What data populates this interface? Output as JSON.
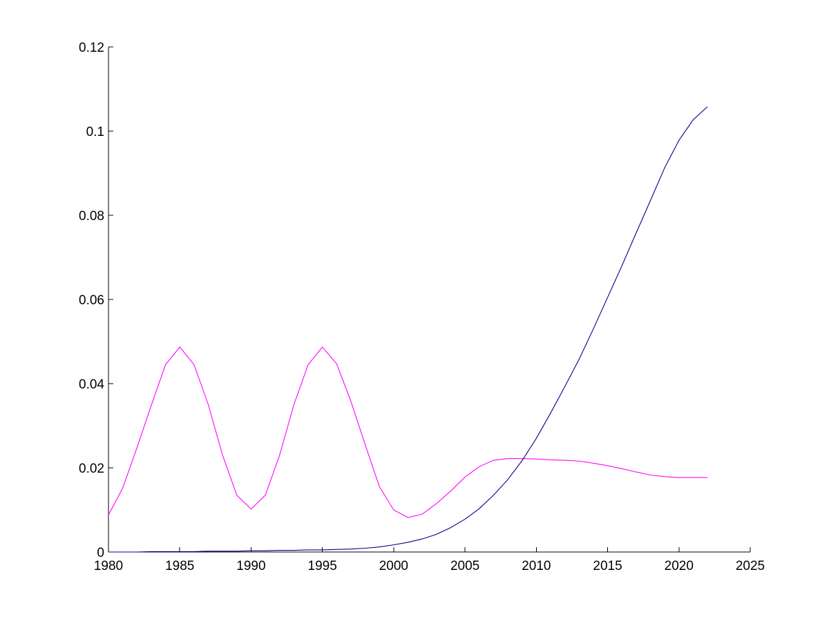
{
  "chart_data": {
    "type": "line",
    "title": "",
    "xlabel": "",
    "ylabel": "",
    "xlim": [
      1980,
      2025
    ],
    "ylim": [
      0,
      0.12
    ],
    "grid": false,
    "x_ticks": [
      "1980",
      "1985",
      "1990",
      "1995",
      "2000",
      "2005",
      "2010",
      "2015",
      "2020",
      "2025"
    ],
    "y_ticks": [
      "0",
      "0.02",
      "0.04",
      "0.06",
      "0.08",
      "0.1",
      "0.12"
    ],
    "x": [
      1980,
      1981,
      1982,
      1983,
      1984,
      1985,
      1986,
      1987,
      1988,
      1989,
      1990,
      1991,
      1992,
      1993,
      1994,
      1995,
      1996,
      1997,
      1998,
      1999,
      2000,
      2001,
      2002,
      2003,
      2004,
      2005,
      2006,
      2007,
      2008,
      2009,
      2010,
      2011,
      2012,
      2013,
      2014,
      2015,
      2016,
      2017,
      2018,
      2019,
      2020,
      2021,
      2022
    ],
    "series": [
      {
        "color": "#ff00ff",
        "values": [
          0.0088,
          0.0152,
          0.0248,
          0.0348,
          0.0445,
          0.0487,
          0.0445,
          0.035,
          0.023,
          0.0135,
          0.0102,
          0.0135,
          0.023,
          0.035,
          0.0445,
          0.0487,
          0.0447,
          0.0358,
          0.0255,
          0.0155,
          0.01,
          0.0082,
          0.009,
          0.0115,
          0.0145,
          0.0178,
          0.0203,
          0.0218,
          0.0222,
          0.0222,
          0.0221,
          0.0219,
          0.0218,
          0.0216,
          0.0211,
          0.0205,
          0.0198,
          0.019,
          0.0183,
          0.0179,
          0.0177,
          0.0177,
          0.0177
        ]
      },
      {
        "color": "#00008b",
        "values": [
          0.0,
          0.0,
          0.0,
          0.0001,
          0.0001,
          0.0001,
          0.0001,
          0.0002,
          0.0002,
          0.0002,
          0.0003,
          0.0003,
          0.0004,
          0.0004,
          0.0005,
          0.0005,
          0.0006,
          0.0007,
          0.0009,
          0.0012,
          0.0017,
          0.0023,
          0.0031,
          0.0042,
          0.0058,
          0.0078,
          0.0103,
          0.0135,
          0.0172,
          0.0217,
          0.027,
          0.033,
          0.0393,
          0.0458,
          0.053,
          0.0605,
          0.068,
          0.0758,
          0.0835,
          0.0913,
          0.0978,
          0.1027,
          0.1058
        ]
      }
    ]
  }
}
